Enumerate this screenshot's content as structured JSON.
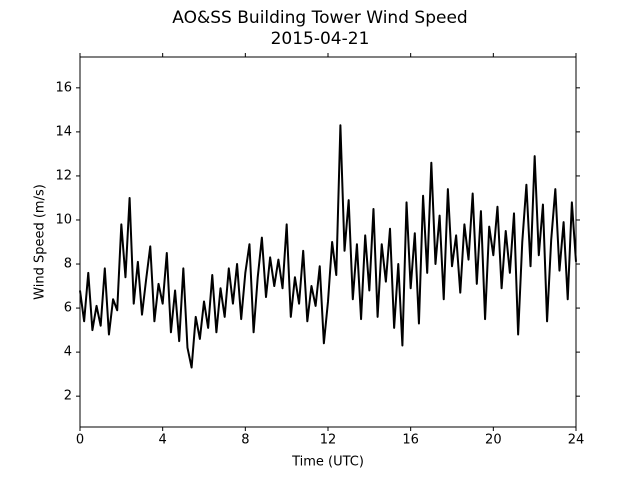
{
  "chart_data": {
    "type": "line",
    "title": "AO&SS Building Tower Wind Speed",
    "subtitle": "2015-04-21",
    "x_label": "Time (UTC)",
    "y_label": "Wind Speed (m/s)",
    "x": [
      0,
      0.2,
      0.4,
      0.6,
      0.8,
      1,
      1.2,
      1.4,
      1.6,
      1.8,
      2,
      2.2,
      2.4,
      2.6,
      2.8,
      3,
      3.2,
      3.4,
      3.6,
      3.8,
      4,
      4.2,
      4.4,
      4.6,
      4.8,
      5,
      5.2,
      5.4,
      5.6,
      5.8,
      6,
      6.2,
      6.4,
      6.6,
      6.8,
      7,
      7.2,
      7.4,
      7.6,
      7.8,
      8,
      8.2,
      8.4,
      8.6,
      8.8,
      9,
      9.2,
      9.4,
      9.6,
      9.8,
      10,
      10.2,
      10.4,
      10.6,
      10.8,
      11,
      11.2,
      11.4,
      11.6,
      11.8,
      12,
      12.2,
      12.4,
      12.6,
      12.8,
      13,
      13.2,
      13.4,
      13.6,
      13.8,
      14,
      14.2,
      14.4,
      14.6,
      14.8,
      15,
      15.2,
      15.4,
      15.6,
      15.8,
      16,
      16.2,
      16.4,
      16.6,
      16.8,
      17,
      17.2,
      17.4,
      17.6,
      17.8,
      18,
      18.2,
      18.4,
      18.6,
      18.8,
      19,
      19.2,
      19.4,
      19.6,
      19.8,
      20,
      20.2,
      20.4,
      20.6,
      20.8,
      21,
      21.2,
      21.4,
      21.6,
      21.8,
      22,
      22.2,
      22.4,
      22.6,
      22.8,
      23,
      23.2,
      23.4,
      23.6,
      23.8,
      24
    ],
    "series": [
      {
        "color": "#000000",
        "values": [
          6.8,
          5.4,
          7.6,
          5.0,
          6.1,
          5.2,
          7.8,
          4.8,
          6.4,
          5.9,
          9.8,
          7.4,
          11.0,
          6.2,
          8.1,
          5.7,
          7.3,
          8.8,
          5.4,
          7.1,
          6.2,
          8.5,
          4.9,
          6.8,
          4.5,
          7.8,
          4.2,
          3.3,
          5.6,
          4.6,
          6.3,
          5.1,
          7.5,
          4.9,
          6.9,
          5.6,
          7.8,
          6.2,
          8.0,
          5.5,
          7.6,
          8.9,
          4.9,
          7.4,
          9.2,
          6.5,
          8.3,
          7.0,
          8.2,
          6.9,
          9.8,
          5.6,
          7.4,
          6.2,
          8.6,
          5.4,
          7.0,
          6.1,
          7.9,
          4.4,
          6.3,
          9.0,
          7.5,
          14.3,
          8.6,
          10.9,
          6.4,
          8.9,
          5.5,
          9.3,
          6.8,
          10.5,
          5.6,
          8.9,
          7.2,
          9.6,
          5.1,
          8.0,
          4.3,
          10.8,
          6.9,
          9.4,
          5.3,
          11.1,
          7.6,
          12.6,
          8.0,
          10.2,
          6.4,
          11.4,
          7.9,
          9.3,
          6.7,
          9.8,
          8.2,
          11.2,
          7.1,
          10.4,
          5.5,
          9.7,
          8.4,
          10.6,
          6.9,
          9.5,
          7.6,
          10.3,
          4.8,
          9.0,
          11.6,
          7.9,
          12.9,
          8.4,
          10.7,
          5.4,
          9.1,
          11.4,
          7.7,
          9.9,
          6.4,
          10.8,
          8.1
        ]
      }
    ],
    "xlim": [
      0,
      24
    ],
    "xticks": [
      0,
      4,
      8,
      12,
      16,
      20,
      24
    ],
    "ylim": [
      0.6,
      17.4
    ],
    "yticks": [
      2,
      4,
      6,
      8,
      10,
      12,
      14,
      16
    ]
  }
}
